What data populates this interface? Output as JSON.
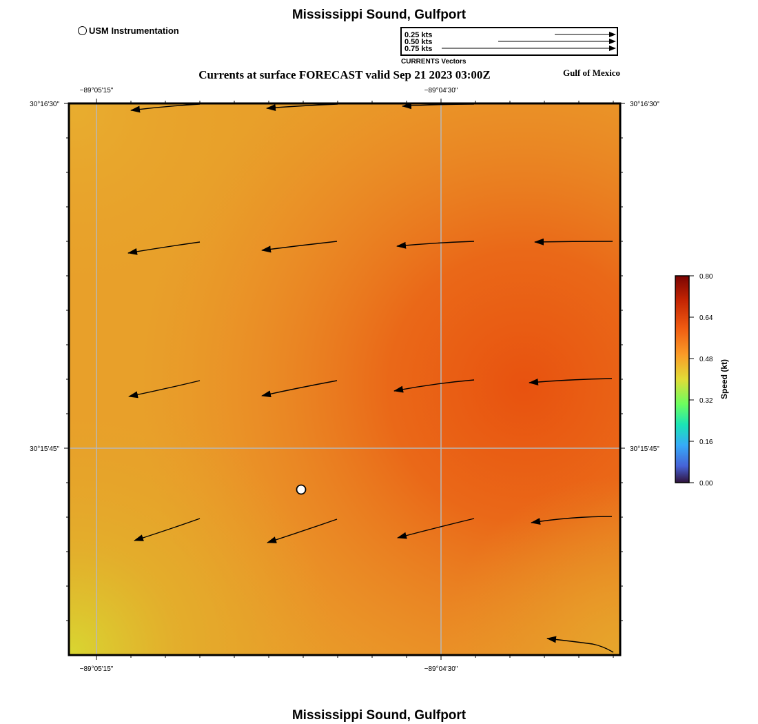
{
  "map": {
    "title": "Mississippi Sound, Gulfport",
    "subtitle": "Currents at surface FORECAST valid Sep 21 2023 03:00Z",
    "region": "Gulf of Mexico",
    "bottom_title": "Mississippi Sound, Gulfport",
    "station_legend": "USM Instrumentation",
    "vector_caption": "CURRENTS Vectors",
    "vector_scale": [
      "0.25 kts",
      "0.50 kts",
      "0.75 kts"
    ],
    "lon_labels": [
      "−89°05'15\"",
      "−89°04'30\""
    ],
    "lat_labels": [
      "30°16'30\"",
      "30°15'45\""
    ],
    "colorbar": {
      "title": "Speed (kt)",
      "ticks": [
        "0.80",
        "0.64",
        "0.48",
        "0.32",
        "0.16",
        "0.00"
      ]
    },
    "colors": {
      "orange_dark": "#e85a14",
      "orange_mid": "#ec7a1e",
      "yellow": "#dccf32"
    }
  }
}
